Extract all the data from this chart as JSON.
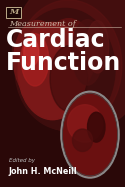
{
  "bg_color": "#2a0808",
  "title_line1": "Measurement of",
  "title_line2": "Cardiac",
  "title_line3": "Function",
  "editor_label": "Edited by",
  "editor_name": "John H. McNeill",
  "publisher_logo": "M",
  "logo_color": "#bbaa88",
  "title_line1_color": "#ccbbaa",
  "title_line23_color": "#ffffff",
  "editor_label_color": "#bbbbbb",
  "editor_name_color": "#ffffff"
}
